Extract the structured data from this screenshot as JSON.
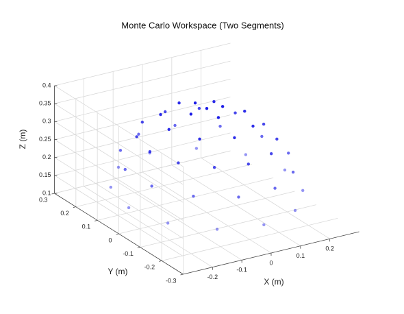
{
  "chart_data": {
    "type": "scatter3d",
    "title": "Monte Carlo Workspace (Two Segments)",
    "xlabel": "X (m)",
    "ylabel": "Y (m)",
    "zlabel": "Z (m)",
    "xlim": [
      -0.3,
      0.3
    ],
    "ylim": [
      -0.3,
      0.3
    ],
    "zlim": [
      0.1,
      0.4
    ],
    "xticks": [
      -0.2,
      -0.1,
      0,
      0.1,
      0.2
    ],
    "yticks": [
      -0.3,
      -0.2,
      -0.1,
      0,
      0.1,
      0.2,
      0.3
    ],
    "zticks": [
      0.1,
      0.15,
      0.2,
      0.25,
      0.3,
      0.35,
      0.4
    ],
    "grid": true,
    "series": [
      {
        "color": "#1414e6",
        "x": [
          0,
          0.054,
          0,
          -0.054,
          0,
          0.129,
          0.091,
          0,
          -0.091,
          -0.129,
          -0.091,
          0,
          0.091,
          0.194,
          0.168,
          0.097,
          0,
          -0.097,
          -0.168,
          -0.194,
          -0.168,
          -0.097,
          0,
          0.097,
          0.168,
          0.233,
          0.17,
          0.062,
          -0.062,
          -0.17,
          -0.233,
          -0.233,
          -0.17,
          -0.062,
          0.062,
          0.17,
          0.233,
          0.266,
          0.23,
          0.133,
          0,
          -0.133,
          -0.23,
          -0.266,
          -0.23,
          -0.133,
          0,
          0.133,
          0.23
        ],
        "y": [
          0,
          0,
          0.054,
          0,
          -0.054,
          0,
          0.091,
          0.129,
          0.091,
          0,
          -0.091,
          -0.129,
          -0.091,
          0,
          0.097,
          0.168,
          0.194,
          0.168,
          0.097,
          0,
          -0.097,
          -0.168,
          -0.194,
          -0.168,
          -0.097,
          0.062,
          0.17,
          0.233,
          0.233,
          0.17,
          0.062,
          -0.062,
          -0.17,
          -0.233,
          -0.233,
          -0.17,
          -0.062,
          0,
          0.133,
          0.23,
          0.266,
          0.23,
          0.133,
          0,
          -0.133,
          -0.23,
          -0.266,
          -0.23,
          -0.133
        ],
        "z": [
          0.39,
          0.385,
          0.385,
          0.385,
          0.385,
          0.357,
          0.357,
          0.357,
          0.357,
          0.357,
          0.357,
          0.357,
          0.357,
          0.308,
          0.308,
          0.308,
          0.308,
          0.308,
          0.308,
          0.308,
          0.308,
          0.308,
          0.308,
          0.308,
          0.308,
          0.243,
          0.243,
          0.243,
          0.243,
          0.243,
          0.243,
          0.243,
          0.243,
          0.243,
          0.243,
          0.243,
          0.243,
          0.166,
          0.166,
          0.166,
          0.166,
          0.166,
          0.166,
          0.166,
          0.166,
          0.166,
          0.166,
          0.166,
          0.166
        ]
      }
    ]
  }
}
